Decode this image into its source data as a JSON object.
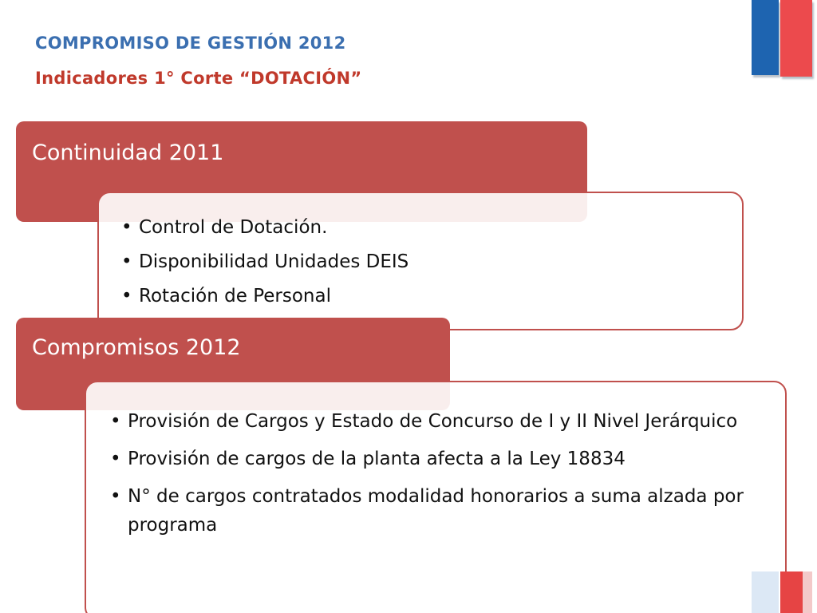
{
  "slide": {
    "title_line1": "COMPROMISO DE GESTIÓN 2012",
    "title_line2": "Indicadores 1°   Corte “DOTACIÓN”"
  },
  "section1": {
    "header": "Continuidad 2011",
    "items": [
      "Control de Dotación.",
      "Disponibilidad Unidades DEIS",
      "Rotación de Personal"
    ]
  },
  "section2": {
    "header": "Compromisos 2012",
    "items": [
      "Provisión de Cargos y Estado de Concurso de I y II Nivel Jerárquico",
      "Provisión de cargos de la planta afecta a la Ley 18834",
      "N° de cargos contratados modalidad honorarios a suma alzada por programa"
    ]
  },
  "colors": {
    "title_blue": "#3b6fb0",
    "title_red": "#c0392b",
    "panel_red": "#c0504d",
    "flag_blue": "#1e64b0",
    "flag_red": "#ec4a4d"
  }
}
